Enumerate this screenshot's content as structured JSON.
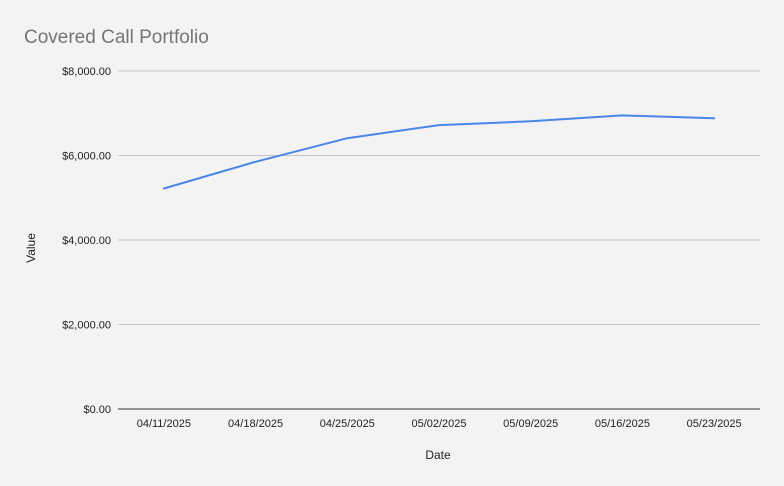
{
  "chart_data": {
    "type": "line",
    "title": "Covered Call Portfolio",
    "xlabel": "Date",
    "ylabel": "Value",
    "categories": [
      "04/11/2025",
      "04/18/2025",
      "04/25/2025",
      "05/02/2025",
      "05/09/2025",
      "05/16/2025",
      "05/23/2025"
    ],
    "series": [
      {
        "values": [
          5220,
          5850,
          6410,
          6720,
          6810,
          6950,
          6880
        ]
      }
    ],
    "ylim": [
      0,
      8000
    ],
    "yticks": [
      0,
      2000,
      4000,
      6000,
      8000
    ],
    "ytick_labels": [
      "$0.00",
      "$2,000.00",
      "$4,000.00",
      "$6,000.00",
      "$8,000.00"
    ],
    "grid": true,
    "legend": "none",
    "colors": {
      "line": "#4a86e8",
      "gridline": "#c6c6c6",
      "background": "#f3f3f3",
      "title": "#757575"
    }
  }
}
